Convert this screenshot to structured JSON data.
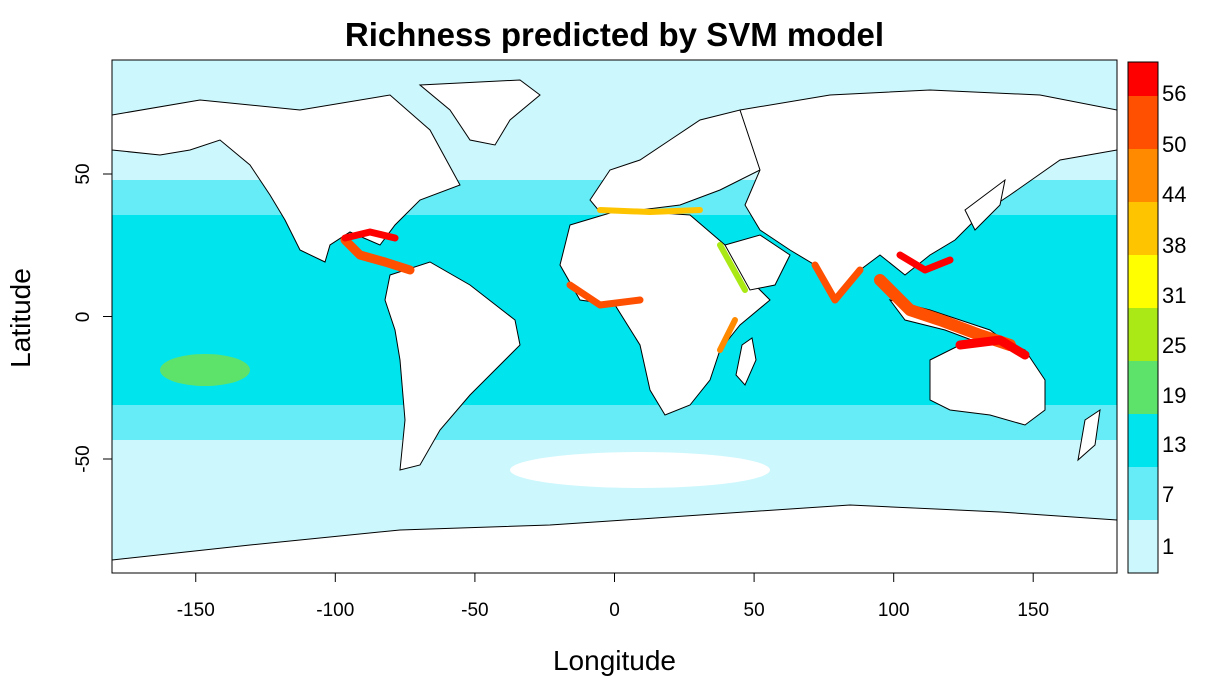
{
  "chart_data": {
    "type": "heatmap",
    "title": "Richness predicted by SVM model",
    "xlabel": "Longitude",
    "ylabel": "Latitude",
    "xlim": [
      -180,
      180
    ],
    "ylim": [
      -90,
      90
    ],
    "x_ticks": [
      "-150",
      "-100",
      "-50",
      "0",
      "50",
      "100",
      "150"
    ],
    "y_ticks": [
      "50",
      "0",
      "-50"
    ],
    "legend": {
      "placement": "right",
      "labels": [
        "1",
        "7",
        "13",
        "19",
        "25",
        "31",
        "38",
        "44",
        "50",
        "56"
      ],
      "colors": [
        "#ccf7fc",
        "#66ecf6",
        "#00e4ee",
        "#5ee36a",
        "#aae916",
        "#ffff00",
        "#ffc400",
        "#ff8a00",
        "#ff4f00",
        "#ff0000"
      ]
    }
  }
}
